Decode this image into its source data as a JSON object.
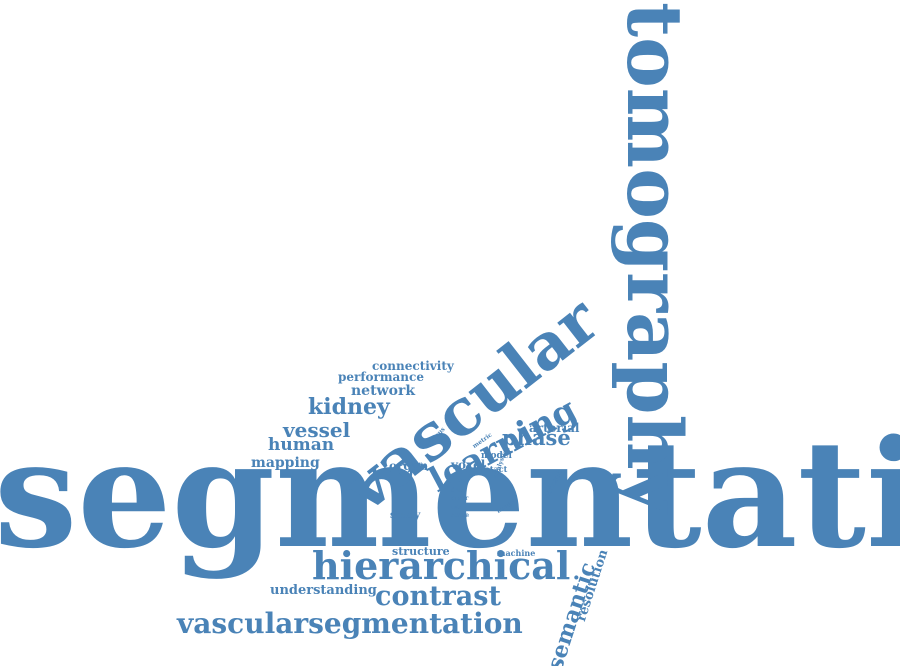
{
  "cloud": {
    "color": "#4a83b7",
    "background": "#ffffff",
    "words": {
      "segmentation": "segmentation",
      "tomography": "tomography",
      "vascular": "vascular",
      "learning": "learning",
      "hierarchical": "hierarchical",
      "vascularsegmentation": "vascularsegmentation",
      "contrast": "contrast",
      "semantic": "semantic",
      "phase": "phase",
      "kidney": "kidney",
      "vessel": "vessel",
      "human": "human",
      "mapping": "mapping",
      "network": "network",
      "performance": "performance",
      "connectivity": "connectivity",
      "structure": "structure",
      "understanding": "understanding",
      "resolution": "resolution",
      "arterial": "arterial",
      "organ": "organ",
      "voxel": "voxel",
      "model": "model",
      "intact": "intact",
      "metric": "metric",
      "various": "various",
      "review": "review",
      "analysis": "analysis",
      "dataset": "dataset",
      "data": "data",
      "error": "error",
      "case": "case",
      "score": "score",
      "image": "image",
      "study": "study",
      "machine": "machine"
    }
  }
}
